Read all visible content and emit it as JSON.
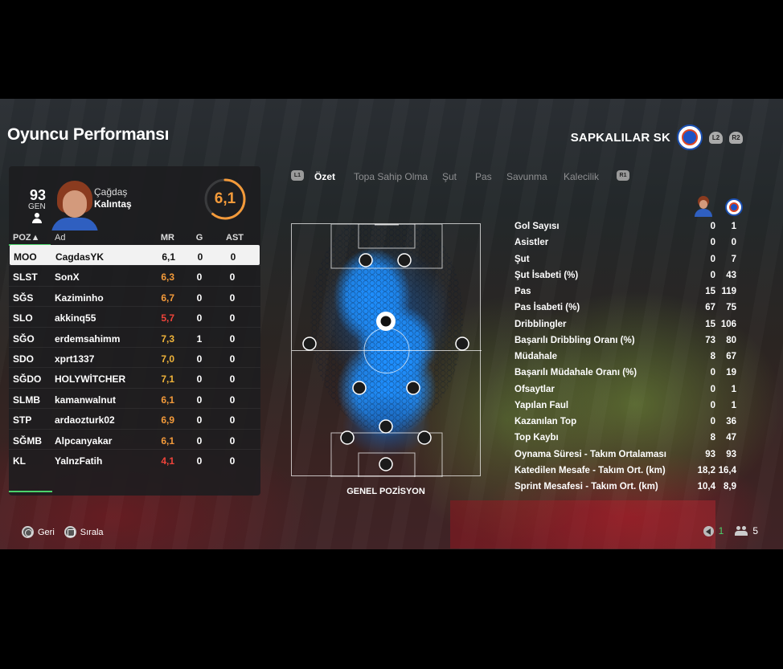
{
  "header": {
    "title": "Oyuncu Performansı"
  },
  "club": {
    "name": "SAPKALILAR SK",
    "btn_left": "L2",
    "btn_right": "R2"
  },
  "player_card": {
    "gen_value": "93",
    "gen_label": "GEN",
    "first_name": "Çağdaş",
    "last_name": "Kalıntaş",
    "rating": "6,1",
    "rating_fraction": 0.61
  },
  "table": {
    "headers": {
      "pos": "POZ▲",
      "name": "Ad",
      "mr": "MR",
      "g": "G",
      "ast": "AST"
    },
    "rows": [
      {
        "pos": "MOO",
        "name": "CagdasYK",
        "mr": "6,1",
        "g": "0",
        "ast": "0"
      },
      {
        "pos": "SLST",
        "name": "SonX",
        "mr": "6,3",
        "g": "0",
        "ast": "0"
      },
      {
        "pos": "SĞS",
        "name": "Kaziminho",
        "mr": "6,7",
        "g": "0",
        "ast": "0"
      },
      {
        "pos": "SLO",
        "name": "akkinq55",
        "mr": "5,7",
        "g": "0",
        "ast": "0"
      },
      {
        "pos": "SĞO",
        "name": "erdemsahimm",
        "mr": "7,3",
        "g": "1",
        "ast": "0"
      },
      {
        "pos": "SDO",
        "name": "xprt1337",
        "mr": "7,0",
        "g": "0",
        "ast": "0"
      },
      {
        "pos": "SĞDO",
        "name": "HOLYWİTCHER",
        "mr": "7,1",
        "g": "0",
        "ast": "0"
      },
      {
        "pos": "SLMB",
        "name": "kamanwalnut",
        "mr": "6,1",
        "g": "0",
        "ast": "0"
      },
      {
        "pos": "STP",
        "name": "ardaozturk02",
        "mr": "6,9",
        "g": "0",
        "ast": "0"
      },
      {
        "pos": "SĞMB",
        "name": "Alpcanyakar",
        "mr": "6,1",
        "g": "0",
        "ast": "0"
      },
      {
        "pos": "KL",
        "name": "YalnzFatih",
        "mr": "4,1",
        "g": "0",
        "ast": "0"
      }
    ]
  },
  "tabs": {
    "left_tag": "L1",
    "right_tag": "R1",
    "items": [
      "Özet",
      "Topa Sahip Olma",
      "Şut",
      "Pas",
      "Savunma",
      "Kalecilik"
    ],
    "active": "Özet"
  },
  "pitch": {
    "label": "GENEL POZİSYON"
  },
  "stats": [
    {
      "label": "Gol Sayısı",
      "a": "0",
      "b": "1"
    },
    {
      "label": "Asistler",
      "a": "0",
      "b": "0"
    },
    {
      "label": "Şut",
      "a": "0",
      "b": "7"
    },
    {
      "label": "Şut İsabeti (%)",
      "a": "0",
      "b": "43"
    },
    {
      "label": "Pas",
      "a": "15",
      "b": "119"
    },
    {
      "label": "Pas İsabeti (%)",
      "a": "67",
      "b": "75"
    },
    {
      "label": "Dribblingler",
      "a": "15",
      "b": "106"
    },
    {
      "label": "Başarılı Dribbling Oranı (%)",
      "a": "73",
      "b": "80"
    },
    {
      "label": "Müdahale",
      "a": "8",
      "b": "67"
    },
    {
      "label": "Başarılı Müdahale Oranı (%)",
      "a": "0",
      "b": "19"
    },
    {
      "label": "Ofsaytlar",
      "a": "0",
      "b": "1"
    },
    {
      "label": "Yapılan Faul",
      "a": "0",
      "b": "1"
    },
    {
      "label": "Kazanılan Top",
      "a": "0",
      "b": "36"
    },
    {
      "label": "Top Kaybı",
      "a": "8",
      "b": "47"
    },
    {
      "label": "Oynama Süresi - Takım Ortalaması",
      "a": "93",
      "b": "93"
    },
    {
      "label": "Katedilen Mesafe - Takım Ort. (km)",
      "a": "18,2",
      "b": "16,4"
    },
    {
      "label": "Sprint Mesafesi - Takım Ort. (km)",
      "a": "10,4",
      "b": "8,9"
    }
  ],
  "footer": {
    "back": "Geri",
    "sort": "Sırala",
    "count_a": "1",
    "count_b": "5"
  },
  "colors": {
    "accent_green": "#4bd36b",
    "rating_orange": "#f39a3a",
    "heat_blue": "#1e8fff"
  }
}
